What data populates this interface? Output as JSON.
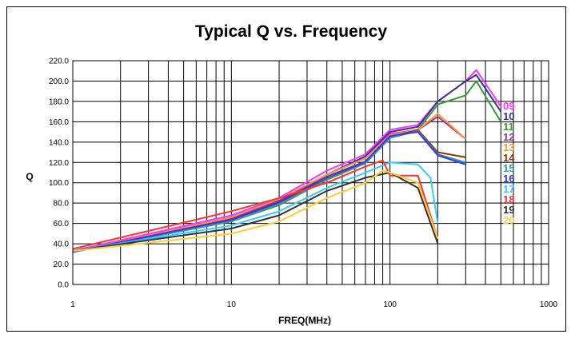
{
  "chart_data": {
    "type": "line",
    "title": "Typical Q vs. Frequency",
    "xlabel": "FREQ(MHz)",
    "ylabel": "Q",
    "xscale": "log",
    "xlim": [
      1,
      1000
    ],
    "ylim": [
      0,
      220
    ],
    "xticks": [
      1,
      10,
      100,
      1000
    ],
    "xtick_labels": [
      "1",
      "10",
      "100",
      "1000"
    ],
    "yticks": [
      0,
      20,
      40,
      60,
      80,
      100,
      120,
      140,
      160,
      180,
      200,
      220
    ],
    "ytick_labels": [
      "0.0",
      "20.0",
      "40.0",
      "60.0",
      "80.0",
      "100.0",
      "120.0",
      "140.0",
      "160.0",
      "180.0",
      "200.0",
      "220.0"
    ],
    "grid": true,
    "legend_position": "right",
    "series": [
      {
        "name": "09",
        "color": "#ff33ff",
        "x": [
          1,
          10,
          20,
          40,
          70,
          100,
          150,
          200,
          300,
          350,
          500
        ],
        "y": [
          33,
          68,
          85,
          112,
          128,
          152,
          157,
          180,
          200,
          211,
          175
        ]
      },
      {
        "name": "10",
        "color": "#333399",
        "x": [
          1,
          10,
          20,
          40,
          70,
          100,
          150,
          200,
          300,
          350,
          500
        ],
        "y": [
          32,
          66,
          83,
          108,
          126,
          150,
          155,
          180,
          200,
          206,
          170
        ]
      },
      {
        "name": "11",
        "color": "#339933",
        "x": [
          1,
          10,
          20,
          40,
          70,
          100,
          150,
          200,
          300,
          350,
          500
        ],
        "y": [
          32,
          62,
          78,
          103,
          120,
          146,
          152,
          177,
          186,
          200,
          160
        ]
      },
      {
        "name": "12",
        "color": "#993399",
        "x": [
          1,
          10,
          20,
          40,
          70,
          100,
          150,
          200,
          300
        ],
        "y": [
          32,
          65,
          82,
          108,
          124,
          148,
          152,
          165,
          143
        ]
      },
      {
        "name": "13",
        "color": "#ff9933",
        "x": [
          1,
          10,
          20,
          40,
          70,
          100,
          150,
          200,
          300
        ],
        "y": [
          32,
          66,
          84,
          108,
          124,
          147,
          152,
          168,
          143
        ]
      },
      {
        "name": "14",
        "color": "#993300",
        "x": [
          1,
          10,
          20,
          40,
          70,
          100,
          150,
          200,
          300
        ],
        "y": [
          32,
          63,
          80,
          104,
          120,
          145,
          152,
          130,
          125
        ]
      },
      {
        "name": "15",
        "color": "#339999",
        "x": [
          1,
          10,
          20,
          40,
          70,
          100,
          150,
          200,
          300
        ],
        "y": [
          32,
          62,
          79,
          103,
          119,
          144,
          151,
          128,
          120
        ]
      },
      {
        "name": "16",
        "color": "#3333ff",
        "x": [
          1,
          10,
          20,
          40,
          70,
          100,
          150,
          200,
          300
        ],
        "y": [
          32,
          64,
          81,
          106,
          121,
          146,
          150,
          127,
          118
        ]
      },
      {
        "name": "17",
        "color": "#33ccff",
        "x": [
          1,
          10,
          20,
          40,
          70,
          100,
          150,
          180,
          200
        ],
        "y": [
          33,
          58,
          72,
          95,
          110,
          120,
          118,
          105,
          60
        ]
      },
      {
        "name": "18",
        "color": "#ff3333",
        "x": [
          1,
          10,
          20,
          40,
          70,
          90,
          100,
          150,
          200
        ],
        "y": [
          35,
          72,
          85,
          100,
          116,
          122,
          107,
          107,
          45
        ]
      },
      {
        "name": "19",
        "color": "#333333",
        "x": [
          1,
          10,
          20,
          40,
          70,
          100,
          150,
          190,
          200
        ],
        "y": [
          33,
          55,
          68,
          92,
          105,
          110,
          95,
          50,
          40
        ]
      },
      {
        "name": "20",
        "color": "#ffcc33",
        "x": [
          1,
          10,
          20,
          40,
          70,
          90,
          100,
          150,
          190,
          200
        ],
        "y": [
          33,
          50,
          62,
          85,
          100,
          112,
          110,
          100,
          55,
          45
        ]
      }
    ]
  }
}
